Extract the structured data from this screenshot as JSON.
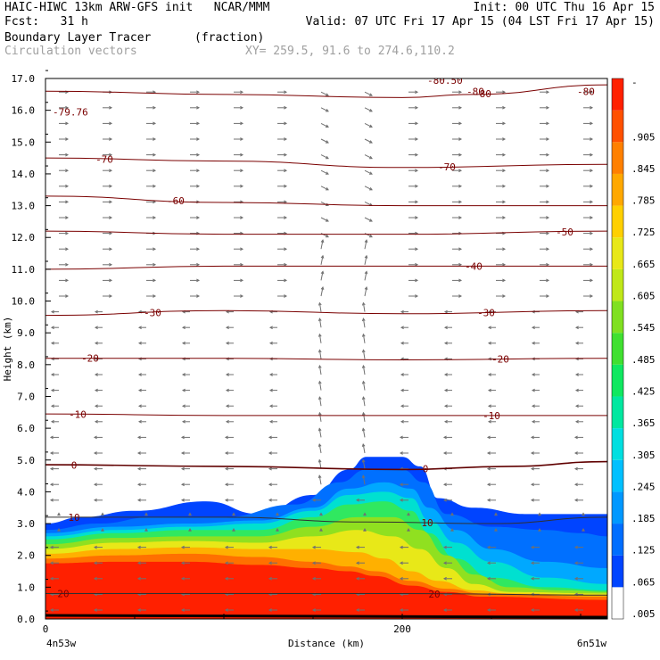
{
  "header": {
    "line1_left": "HAIC-HIWC 13km ARW-GFS init   NCAR/MMM",
    "line1_right": "Init: 00 UTC Thu 16 Apr 15",
    "line2_left": "Fcst:   31 h",
    "line2_right": "Valid: 07 UTC Fri 17 Apr 15 (04 LST Fri 17 Apr 15)",
    "field_name": "Boundary Layer Tracer",
    "field_units": "(fraction)",
    "vector_name": "Circulation vectors",
    "xy_range": "XY= 259.5, 91.6 to 274.6,110.2"
  },
  "chart_data": {
    "type": "heatmap",
    "xlabel": "Distance (km)",
    "ylabel": "Height (km)",
    "x_tick_labels": [
      "0",
      "200"
    ],
    "x_ticks": [
      0,
      200
    ],
    "xlim": [
      0,
      315
    ],
    "ylim": [
      0,
      17
    ],
    "y_ticks": [
      "0.0",
      "1.0",
      "2.0",
      "3.0",
      "4.0",
      "5.0",
      "6.0",
      "7.0",
      "8.0",
      "9.0",
      "10.0",
      "11.0",
      "12.0",
      "13.0",
      "14.0",
      "15.0",
      "16.0",
      "17.0"
    ],
    "x_end_labels": {
      "left": "4n53w",
      "right": "6n51w"
    },
    "colorbar": {
      "labels": [
        ".005",
        ".065",
        ".125",
        ".185",
        ".245",
        ".305",
        ".365",
        ".425",
        ".485",
        ".545",
        ".605",
        ".665",
        ".725",
        ".785",
        ".845",
        ".905"
      ],
      "top_label": "-",
      "colors": [
        "#ffffff",
        "#0044ff",
        "#006eff",
        "#0098ff",
        "#00c0ff",
        "#00dfe0",
        "#00e8a0",
        "#10e860",
        "#40e030",
        "#80e020",
        "#c0e818",
        "#e8e818",
        "#ffd000",
        "#ffa800",
        "#ff8000",
        "#ff5000",
        "#ff2000"
      ]
    },
    "tracer_layers": [
      {
        "color": "#0044ff",
        "top": [
          [
            0,
            3.0
          ],
          [
            20,
            3.2
          ],
          [
            50,
            3.4
          ],
          [
            90,
            3.7
          ],
          [
            120,
            3.3
          ],
          [
            150,
            3.9
          ],
          [
            170,
            4.7
          ],
          [
            180,
            5.1
          ],
          [
            200,
            5.1
          ],
          [
            210,
            4.8
          ],
          [
            220,
            3.8
          ],
          [
            240,
            3.5
          ],
          [
            270,
            3.3
          ],
          [
            300,
            3.3
          ],
          [
            315,
            3.3
          ]
        ]
      },
      {
        "color": "#0070ff",
        "top": [
          [
            0,
            2.8
          ],
          [
            30,
            3.0
          ],
          [
            60,
            3.2
          ],
          [
            100,
            3.2
          ],
          [
            140,
            3.6
          ],
          [
            165,
            4.3
          ],
          [
            180,
            4.7
          ],
          [
            200,
            4.7
          ],
          [
            212,
            4.3
          ],
          [
            225,
            3.3
          ],
          [
            250,
            2.9
          ],
          [
            280,
            2.8
          ],
          [
            300,
            2.7
          ],
          [
            315,
            2.6
          ]
        ]
      },
      {
        "color": "#00a8ff",
        "top": [
          [
            0,
            2.7
          ],
          [
            40,
            2.9
          ],
          [
            80,
            3.0
          ],
          [
            120,
            3.1
          ],
          [
            150,
            3.5
          ],
          [
            170,
            4.1
          ],
          [
            190,
            4.3
          ],
          [
            205,
            4.1
          ],
          [
            215,
            3.5
          ],
          [
            230,
            2.8
          ],
          [
            250,
            2.2
          ],
          [
            280,
            1.8
          ],
          [
            315,
            1.6
          ]
        ]
      },
      {
        "color": "#00e0d0",
        "top": [
          [
            0,
            2.6
          ],
          [
            40,
            2.8
          ],
          [
            80,
            2.9
          ],
          [
            120,
            3.0
          ],
          [
            150,
            3.4
          ],
          [
            170,
            3.9
          ],
          [
            190,
            4.0
          ],
          [
            205,
            3.8
          ],
          [
            215,
            3.1
          ],
          [
            230,
            2.4
          ],
          [
            250,
            1.8
          ],
          [
            280,
            1.3
          ],
          [
            315,
            1.1
          ]
        ]
      },
      {
        "color": "#30e860",
        "top": [
          [
            0,
            2.5
          ],
          [
            40,
            2.7
          ],
          [
            80,
            2.8
          ],
          [
            120,
            2.8
          ],
          [
            150,
            3.2
          ],
          [
            170,
            3.6
          ],
          [
            190,
            3.7
          ],
          [
            205,
            3.4
          ],
          [
            215,
            2.7
          ],
          [
            230,
            1.9
          ],
          [
            250,
            1.3
          ],
          [
            280,
            1.0
          ],
          [
            315,
            0.9
          ]
        ]
      },
      {
        "color": "#90e020",
        "top": [
          [
            0,
            2.35
          ],
          [
            40,
            2.55
          ],
          [
            80,
            2.6
          ],
          [
            120,
            2.6
          ],
          [
            150,
            2.9
          ],
          [
            175,
            3.2
          ],
          [
            195,
            3.2
          ],
          [
            210,
            2.8
          ],
          [
            225,
            2.0
          ],
          [
            240,
            1.4
          ],
          [
            260,
            1.0
          ],
          [
            290,
            0.9
          ],
          [
            315,
            0.85
          ]
        ]
      },
      {
        "color": "#e8e818",
        "top": [
          [
            0,
            2.2
          ],
          [
            40,
            2.4
          ],
          [
            80,
            2.45
          ],
          [
            120,
            2.4
          ],
          [
            150,
            2.6
          ],
          [
            175,
            2.8
          ],
          [
            195,
            2.6
          ],
          [
            210,
            2.2
          ],
          [
            225,
            1.6
          ],
          [
            240,
            1.1
          ],
          [
            260,
            0.85
          ],
          [
            315,
            0.8
          ]
        ]
      },
      {
        "color": "#ffb000",
        "top": [
          [
            0,
            2.05
          ],
          [
            40,
            2.2
          ],
          [
            80,
            2.25
          ],
          [
            120,
            2.2
          ],
          [
            150,
            2.2
          ],
          [
            175,
            2.1
          ],
          [
            190,
            1.9
          ],
          [
            205,
            1.5
          ],
          [
            220,
            1.2
          ],
          [
            240,
            0.9
          ],
          [
            260,
            0.8
          ],
          [
            315,
            0.75
          ]
        ]
      },
      {
        "color": "#ff7000",
        "top": [
          [
            0,
            1.9
          ],
          [
            40,
            2.0
          ],
          [
            80,
            2.05
          ],
          [
            120,
            1.95
          ],
          [
            150,
            1.8
          ],
          [
            170,
            1.65
          ],
          [
            185,
            1.5
          ],
          [
            205,
            1.2
          ],
          [
            225,
            0.95
          ],
          [
            245,
            0.8
          ],
          [
            315,
            0.7
          ]
        ]
      },
      {
        "color": "#ff2000",
        "top": [
          [
            0,
            1.75
          ],
          [
            40,
            1.8
          ],
          [
            80,
            1.8
          ],
          [
            120,
            1.7
          ],
          [
            150,
            1.6
          ],
          [
            170,
            1.5
          ],
          [
            185,
            1.35
          ],
          [
            205,
            1.05
          ],
          [
            225,
            0.85
          ],
          [
            245,
            0.7
          ],
          [
            315,
            0.6
          ]
        ]
      }
    ],
    "temperature_contours": [
      {
        "label": "20",
        "values": [
          [
            0,
            0.8
          ],
          [
            100,
            0.8
          ],
          [
            200,
            0.8
          ],
          [
            315,
            0.75
          ]
        ],
        "label_at": [
          10,
          218
        ]
      },
      {
        "label": "10",
        "values": [
          [
            0,
            3.2
          ],
          [
            100,
            3.2
          ],
          [
            180,
            3.05
          ],
          [
            250,
            3.0
          ],
          [
            315,
            3.2
          ]
        ],
        "label_at": [
          16,
          214
        ]
      },
      {
        "label": "0",
        "values": [
          [
            0,
            4.85
          ],
          [
            100,
            4.8
          ],
          [
            200,
            4.7
          ],
          [
            260,
            4.8
          ],
          [
            315,
            4.95
          ]
        ],
        "label_at": [
          16,
          213
        ]
      },
      {
        "label": "-10",
        "values": [
          [
            0,
            6.45
          ],
          [
            100,
            6.4
          ],
          [
            200,
            6.4
          ],
          [
            315,
            6.4
          ]
        ],
        "label_at": [
          18,
          250
        ]
      },
      {
        "label": "-20",
        "values": [
          [
            0,
            8.2
          ],
          [
            100,
            8.2
          ],
          [
            200,
            8.15
          ],
          [
            315,
            8.2
          ]
        ],
        "label_at": [
          25,
          255
        ]
      },
      {
        "label": "-30",
        "values": [
          [
            0,
            9.55
          ],
          [
            100,
            9.7
          ],
          [
            200,
            9.6
          ],
          [
            315,
            9.7
          ]
        ],
        "label_at": [
          60,
          247
        ]
      },
      {
        "label": "-40",
        "values": [
          [
            0,
            11.0
          ],
          [
            100,
            11.1
          ],
          [
            200,
            11.1
          ],
          [
            315,
            11.1
          ]
        ],
        "label_at": [
          null,
          240
        ]
      },
      {
        "label": "-50",
        "values": [
          [
            0,
            12.2
          ],
          [
            100,
            12.1
          ],
          [
            200,
            12.1
          ],
          [
            315,
            12.2
          ]
        ],
        "label_at": [
          null,
          291
        ]
      },
      {
        "label": "-60",
        "values": [
          [
            0,
            13.3
          ],
          [
            100,
            13.1
          ],
          [
            200,
            13.0
          ],
          [
            315,
            13.0
          ]
        ],
        "label_at": [
          73,
          null
        ]
      },
      {
        "label": "-70",
        "values": [
          [
            0,
            14.5
          ],
          [
            100,
            14.4
          ],
          [
            200,
            14.2
          ],
          [
            315,
            14.3
          ]
        ],
        "label_at": [
          33,
          225
        ]
      },
      {
        "label": "-80",
        "values": [
          [
            0,
            16.6
          ],
          [
            100,
            16.5
          ],
          [
            200,
            16.4
          ],
          [
            240,
            16.5
          ],
          [
            315,
            16.8
          ]
        ],
        "label_at": [
          null,
          245
        ]
      }
    ],
    "extra_labels": [
      {
        "text": "-79.76",
        "x": 4,
        "y": 15.95
      },
      {
        "text": "-80",
        "x": 298,
        "y": 16.6
      },
      {
        "text": "-80.50",
        "x": 214,
        "y": 16.95
      },
      {
        "text": "-80",
        "x": 236,
        "y": 16.6
      }
    ]
  }
}
